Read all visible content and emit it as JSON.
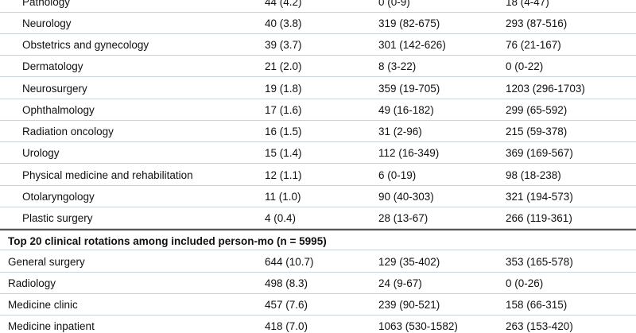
{
  "table": {
    "groups": [
      {
        "rows": [
          [
            "Pathology",
            "44 (4.2)",
            "0 (0-9)",
            "18 (4-47)"
          ],
          [
            "Neurology",
            "40 (3.8)",
            "319 (82-675)",
            "293 (87-516)"
          ],
          [
            "Obstetrics and gynecology",
            "39 (3.7)",
            "301 (142-626)",
            "76 (21-167)"
          ],
          [
            "Dermatology",
            "21 (2.0)",
            "8 (3-22)",
            "0 (0-22)"
          ],
          [
            "Neurosurgery",
            "19 (1.8)",
            "359 (19-705)",
            "1203 (296-1703)"
          ],
          [
            "Ophthalmology",
            "17 (1.6)",
            "49 (16-182)",
            "299 (65-592)"
          ],
          [
            "Radiation oncology",
            "16 (1.5)",
            "31 (2-96)",
            "215 (59-378)"
          ],
          [
            "Urology",
            "15 (1.4)",
            "112 (16-349)",
            "369 (169-567)"
          ],
          [
            "Physical medicine and rehabilitation",
            "12 (1.1)",
            "6 (0-19)",
            "98 (18-238)"
          ],
          [
            "Otolaryngology",
            "11 (1.0)",
            "90 (40-303)",
            "321 (194-573)"
          ],
          [
            "Plastic surgery",
            "4 (0.4)",
            "28 (13-67)",
            "266 (119-361)"
          ]
        ]
      },
      {
        "heading": "Top 20 clinical rotations among included person-mo (n = 5995)",
        "rows": [
          [
            "General surgery",
            "644 (10.7)",
            "129 (35-402)",
            "353 (165-578)"
          ],
          [
            "Radiology",
            "498 (8.3)",
            "24 (9-67)",
            "0 (0-26)"
          ],
          [
            "Medicine clinic",
            "457 (7.6)",
            "239 (90-521)",
            "158 (66-315)"
          ],
          [
            "Medicine inpatient",
            "418 (7.0)",
            "1063 (530-1582)",
            "263 (153-420)"
          ]
        ]
      }
    ]
  }
}
